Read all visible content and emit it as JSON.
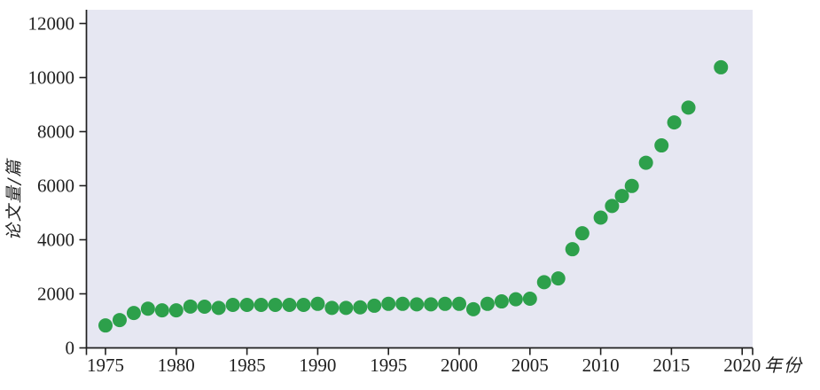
{
  "chart_data": {
    "type": "scatter",
    "title": "",
    "xlabel": "年份",
    "ylabel": "论文量/篇",
    "x_ticks": [
      1975,
      1980,
      1985,
      1990,
      1995,
      2000,
      2005,
      2010,
      2015,
      2020
    ],
    "y_ticks": [
      0,
      2000,
      4000,
      6000,
      8000,
      10000,
      12000
    ],
    "xlim": [
      1973.6,
      2020.7
    ],
    "ylim": [
      0,
      12500
    ],
    "grid": false,
    "legend": false,
    "marker": "circle",
    "marker_color": "#2da04b",
    "plot_background": "#e6e7f2",
    "axis_color": "#1f1f1f",
    "series": [
      {
        "name": "论文量",
        "points": [
          {
            "x": 1975,
            "y": 830
          },
          {
            "x": 1976,
            "y": 1030
          },
          {
            "x": 1977,
            "y": 1290
          },
          {
            "x": 1978,
            "y": 1450
          },
          {
            "x": 1979,
            "y": 1390
          },
          {
            "x": 1980,
            "y": 1390
          },
          {
            "x": 1981,
            "y": 1530
          },
          {
            "x": 1982,
            "y": 1525
          },
          {
            "x": 1983,
            "y": 1480
          },
          {
            "x": 1984,
            "y": 1590
          },
          {
            "x": 1985,
            "y": 1590
          },
          {
            "x": 1986,
            "y": 1590
          },
          {
            "x": 1987,
            "y": 1590
          },
          {
            "x": 1988,
            "y": 1590
          },
          {
            "x": 1989,
            "y": 1590
          },
          {
            "x": 1990,
            "y": 1630
          },
          {
            "x": 1991,
            "y": 1480
          },
          {
            "x": 1992,
            "y": 1480
          },
          {
            "x": 1993,
            "y": 1500
          },
          {
            "x": 1994,
            "y": 1560
          },
          {
            "x": 1995,
            "y": 1630
          },
          {
            "x": 1996,
            "y": 1630
          },
          {
            "x": 1997,
            "y": 1610
          },
          {
            "x": 1998,
            "y": 1610
          },
          {
            "x": 1999,
            "y": 1630
          },
          {
            "x": 2000,
            "y": 1630
          },
          {
            "x": 2001,
            "y": 1430
          },
          {
            "x": 2002,
            "y": 1630
          },
          {
            "x": 2003,
            "y": 1720
          },
          {
            "x": 2004,
            "y": 1800
          },
          {
            "x": 2005,
            "y": 1820
          },
          {
            "x": 2006,
            "y": 2430
          },
          {
            "x": 2007,
            "y": 2570
          },
          {
            "x": 2008,
            "y": 3650
          },
          {
            "x": 2008.7,
            "y": 4240
          },
          {
            "x": 2010,
            "y": 4820
          },
          {
            "x": 2010.8,
            "y": 5250
          },
          {
            "x": 2011.5,
            "y": 5620
          },
          {
            "x": 2012.2,
            "y": 5990
          },
          {
            "x": 2013.2,
            "y": 6850
          },
          {
            "x": 2014.3,
            "y": 7490
          },
          {
            "x": 2015.2,
            "y": 8340
          },
          {
            "x": 2016.2,
            "y": 8890
          },
          {
            "x": 2018.5,
            "y": 10380
          }
        ]
      }
    ]
  }
}
